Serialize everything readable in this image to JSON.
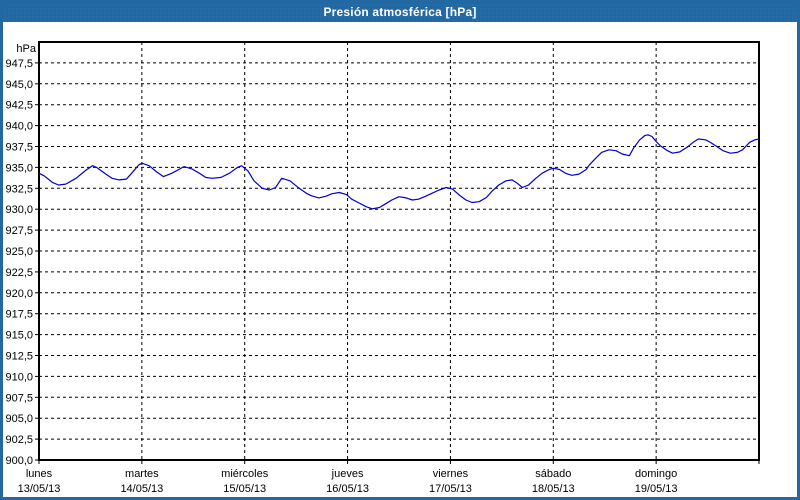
{
  "window": {
    "title": "Presión atmosférica [hPa]"
  },
  "colors": {
    "titlebar_bg": "#2268a2",
    "titlebar_text": "#ffffff",
    "window_border": "#2268a2",
    "plot_bg": "#ffffff",
    "frame": "#000000",
    "grid": "#000000",
    "tick_text": "#000000",
    "series_line": "#0000cc"
  },
  "chart_data": {
    "type": "line",
    "title": "Presión atmosférica [hPa]",
    "y_unit_label": "hPa",
    "xlabel": "",
    "ylabel": "",
    "ylim": [
      900,
      950
    ],
    "ytick_step": 2.5,
    "decimal_separator": ",",
    "grid": "dashed",
    "legend": "none",
    "ytick_labels": [
      "947,5",
      "945,0",
      "942,5",
      "940,0",
      "937,5",
      "935,0",
      "932,5",
      "930,0",
      "927,5",
      "925,0",
      "922,5",
      "920,0",
      "917,5",
      "915,0",
      "912,5",
      "910,0",
      "907,5",
      "905,0",
      "902,5",
      "900,0"
    ],
    "x_span_days": 7,
    "x_categories": [
      {
        "weekday": "lunes",
        "date": "13/05/13"
      },
      {
        "weekday": "martes",
        "date": "14/05/13"
      },
      {
        "weekday": "miércoles",
        "date": "15/05/13"
      },
      {
        "weekday": "jueves",
        "date": "16/05/13"
      },
      {
        "weekday": "viernes",
        "date": "17/05/13"
      },
      {
        "weekday": "sábado",
        "date": "18/05/13"
      },
      {
        "weekday": "domingo",
        "date": "19/05/13"
      }
    ],
    "series": [
      {
        "name": "Presión atmosférica",
        "color": "#0000cc",
        "points": [
          [
            0.0,
            934.3
          ],
          [
            0.05,
            934.0
          ],
          [
            0.13,
            933.2
          ],
          [
            0.19,
            932.9
          ],
          [
            0.26,
            933.0
          ],
          [
            0.36,
            933.7
          ],
          [
            0.46,
            934.7
          ],
          [
            0.52,
            935.2
          ],
          [
            0.56,
            935.0
          ],
          [
            0.65,
            934.2
          ],
          [
            0.71,
            933.7
          ],
          [
            0.78,
            933.5
          ],
          [
            0.85,
            933.6
          ],
          [
            0.9,
            934.3
          ],
          [
            0.97,
            935.3
          ],
          [
            1.0,
            935.5
          ],
          [
            1.07,
            935.2
          ],
          [
            1.15,
            934.4
          ],
          [
            1.21,
            933.9
          ],
          [
            1.29,
            934.3
          ],
          [
            1.41,
            935.1
          ],
          [
            1.49,
            934.8
          ],
          [
            1.56,
            934.3
          ],
          [
            1.62,
            933.8
          ],
          [
            1.68,
            933.7
          ],
          [
            1.77,
            933.8
          ],
          [
            1.85,
            934.3
          ],
          [
            1.93,
            935.0
          ],
          [
            1.97,
            935.2
          ],
          [
            2.03,
            934.6
          ],
          [
            2.09,
            933.4
          ],
          [
            2.17,
            932.5
          ],
          [
            2.24,
            932.3
          ],
          [
            2.3,
            932.6
          ],
          [
            2.36,
            933.7
          ],
          [
            2.44,
            933.4
          ],
          [
            2.53,
            932.5
          ],
          [
            2.6,
            931.9
          ],
          [
            2.65,
            931.6
          ],
          [
            2.72,
            931.35
          ],
          [
            2.79,
            931.55
          ],
          [
            2.85,
            931.85
          ],
          [
            2.92,
            932.0
          ],
          [
            2.99,
            931.75
          ],
          [
            3.04,
            931.2
          ],
          [
            3.11,
            930.75
          ],
          [
            3.18,
            930.3
          ],
          [
            3.24,
            930.05
          ],
          [
            3.31,
            930.2
          ],
          [
            3.37,
            930.65
          ],
          [
            3.43,
            931.1
          ],
          [
            3.5,
            931.5
          ],
          [
            3.57,
            931.35
          ],
          [
            3.63,
            931.1
          ],
          [
            3.69,
            931.2
          ],
          [
            3.76,
            931.55
          ],
          [
            3.82,
            931.9
          ],
          [
            3.89,
            932.3
          ],
          [
            3.96,
            932.6
          ],
          [
            4.02,
            932.4
          ],
          [
            4.08,
            931.75
          ],
          [
            4.15,
            931.1
          ],
          [
            4.21,
            930.8
          ],
          [
            4.28,
            930.9
          ],
          [
            4.35,
            931.4
          ],
          [
            4.4,
            932.1
          ],
          [
            4.47,
            932.9
          ],
          [
            4.54,
            933.4
          ],
          [
            4.6,
            933.5
          ],
          [
            4.65,
            933.1
          ],
          [
            4.7,
            932.6
          ],
          [
            4.76,
            932.9
          ],
          [
            4.83,
            933.7
          ],
          [
            4.89,
            934.3
          ],
          [
            4.96,
            934.75
          ],
          [
            5.0,
            934.9
          ],
          [
            5.06,
            934.75
          ],
          [
            5.12,
            934.3
          ],
          [
            5.18,
            934.05
          ],
          [
            5.25,
            934.2
          ],
          [
            5.32,
            934.75
          ],
          [
            5.35,
            935.3
          ],
          [
            5.42,
            936.2
          ],
          [
            5.47,
            936.8
          ],
          [
            5.54,
            937.1
          ],
          [
            5.61,
            937.0
          ],
          [
            5.67,
            936.6
          ],
          [
            5.74,
            936.4
          ],
          [
            5.78,
            937.3
          ],
          [
            5.84,
            938.3
          ],
          [
            5.89,
            938.8
          ],
          [
            5.92,
            938.9
          ],
          [
            5.96,
            938.7
          ],
          [
            6.0,
            938.1
          ],
          [
            6.04,
            937.6
          ],
          [
            6.11,
            937.0
          ],
          [
            6.16,
            936.7
          ],
          [
            6.23,
            936.85
          ],
          [
            6.3,
            937.4
          ],
          [
            6.36,
            938.0
          ],
          [
            6.41,
            938.4
          ],
          [
            6.48,
            938.3
          ],
          [
            6.52,
            938.05
          ],
          [
            6.59,
            937.5
          ],
          [
            6.65,
            937.0
          ],
          [
            6.72,
            936.7
          ],
          [
            6.79,
            936.8
          ],
          [
            6.84,
            937.1
          ],
          [
            6.91,
            938.0
          ],
          [
            6.96,
            938.3
          ],
          [
            7.0,
            938.4
          ]
        ]
      }
    ]
  }
}
